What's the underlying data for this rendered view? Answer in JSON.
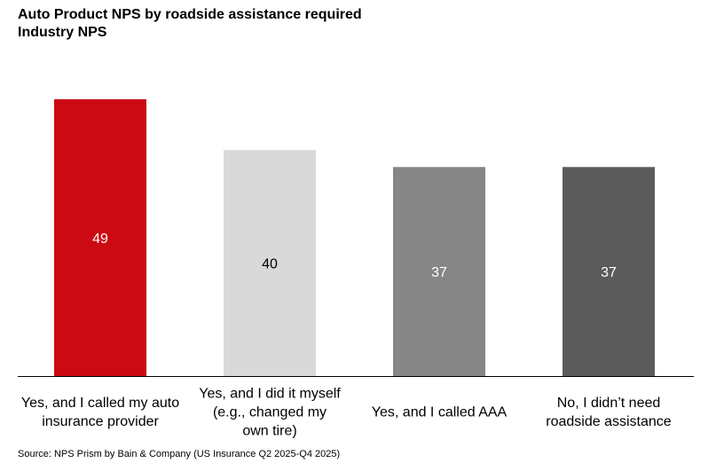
{
  "chart_data": {
    "type": "bar",
    "title": "Auto Product NPS by roadside assistance required",
    "subtitle": "Industry NPS",
    "xlabel": "",
    "ylabel": "",
    "ylim": [
      0,
      54
    ],
    "grid": false,
    "categories": [
      "Yes, and I called my auto insurance provider",
      "Yes, and I did it myself (e.g., changed my own tire)",
      "Yes, and I called AAA",
      "No, I didn’t need roadside assistance"
    ],
    "values": [
      49,
      40,
      37,
      37
    ],
    "value_labels": [
      "49",
      "40",
      "37",
      "37"
    ],
    "colors": [
      "#cc0a14",
      "#d9d9d9",
      "#868686",
      "#5b5b5b"
    ],
    "label_colors": [
      "#ffffff",
      "#000000",
      "#ffffff",
      "#ffffff"
    ]
  },
  "source": "Source: NPS Prism by Bain & Company (US Insurance Q2 2025-Q4 2025)"
}
